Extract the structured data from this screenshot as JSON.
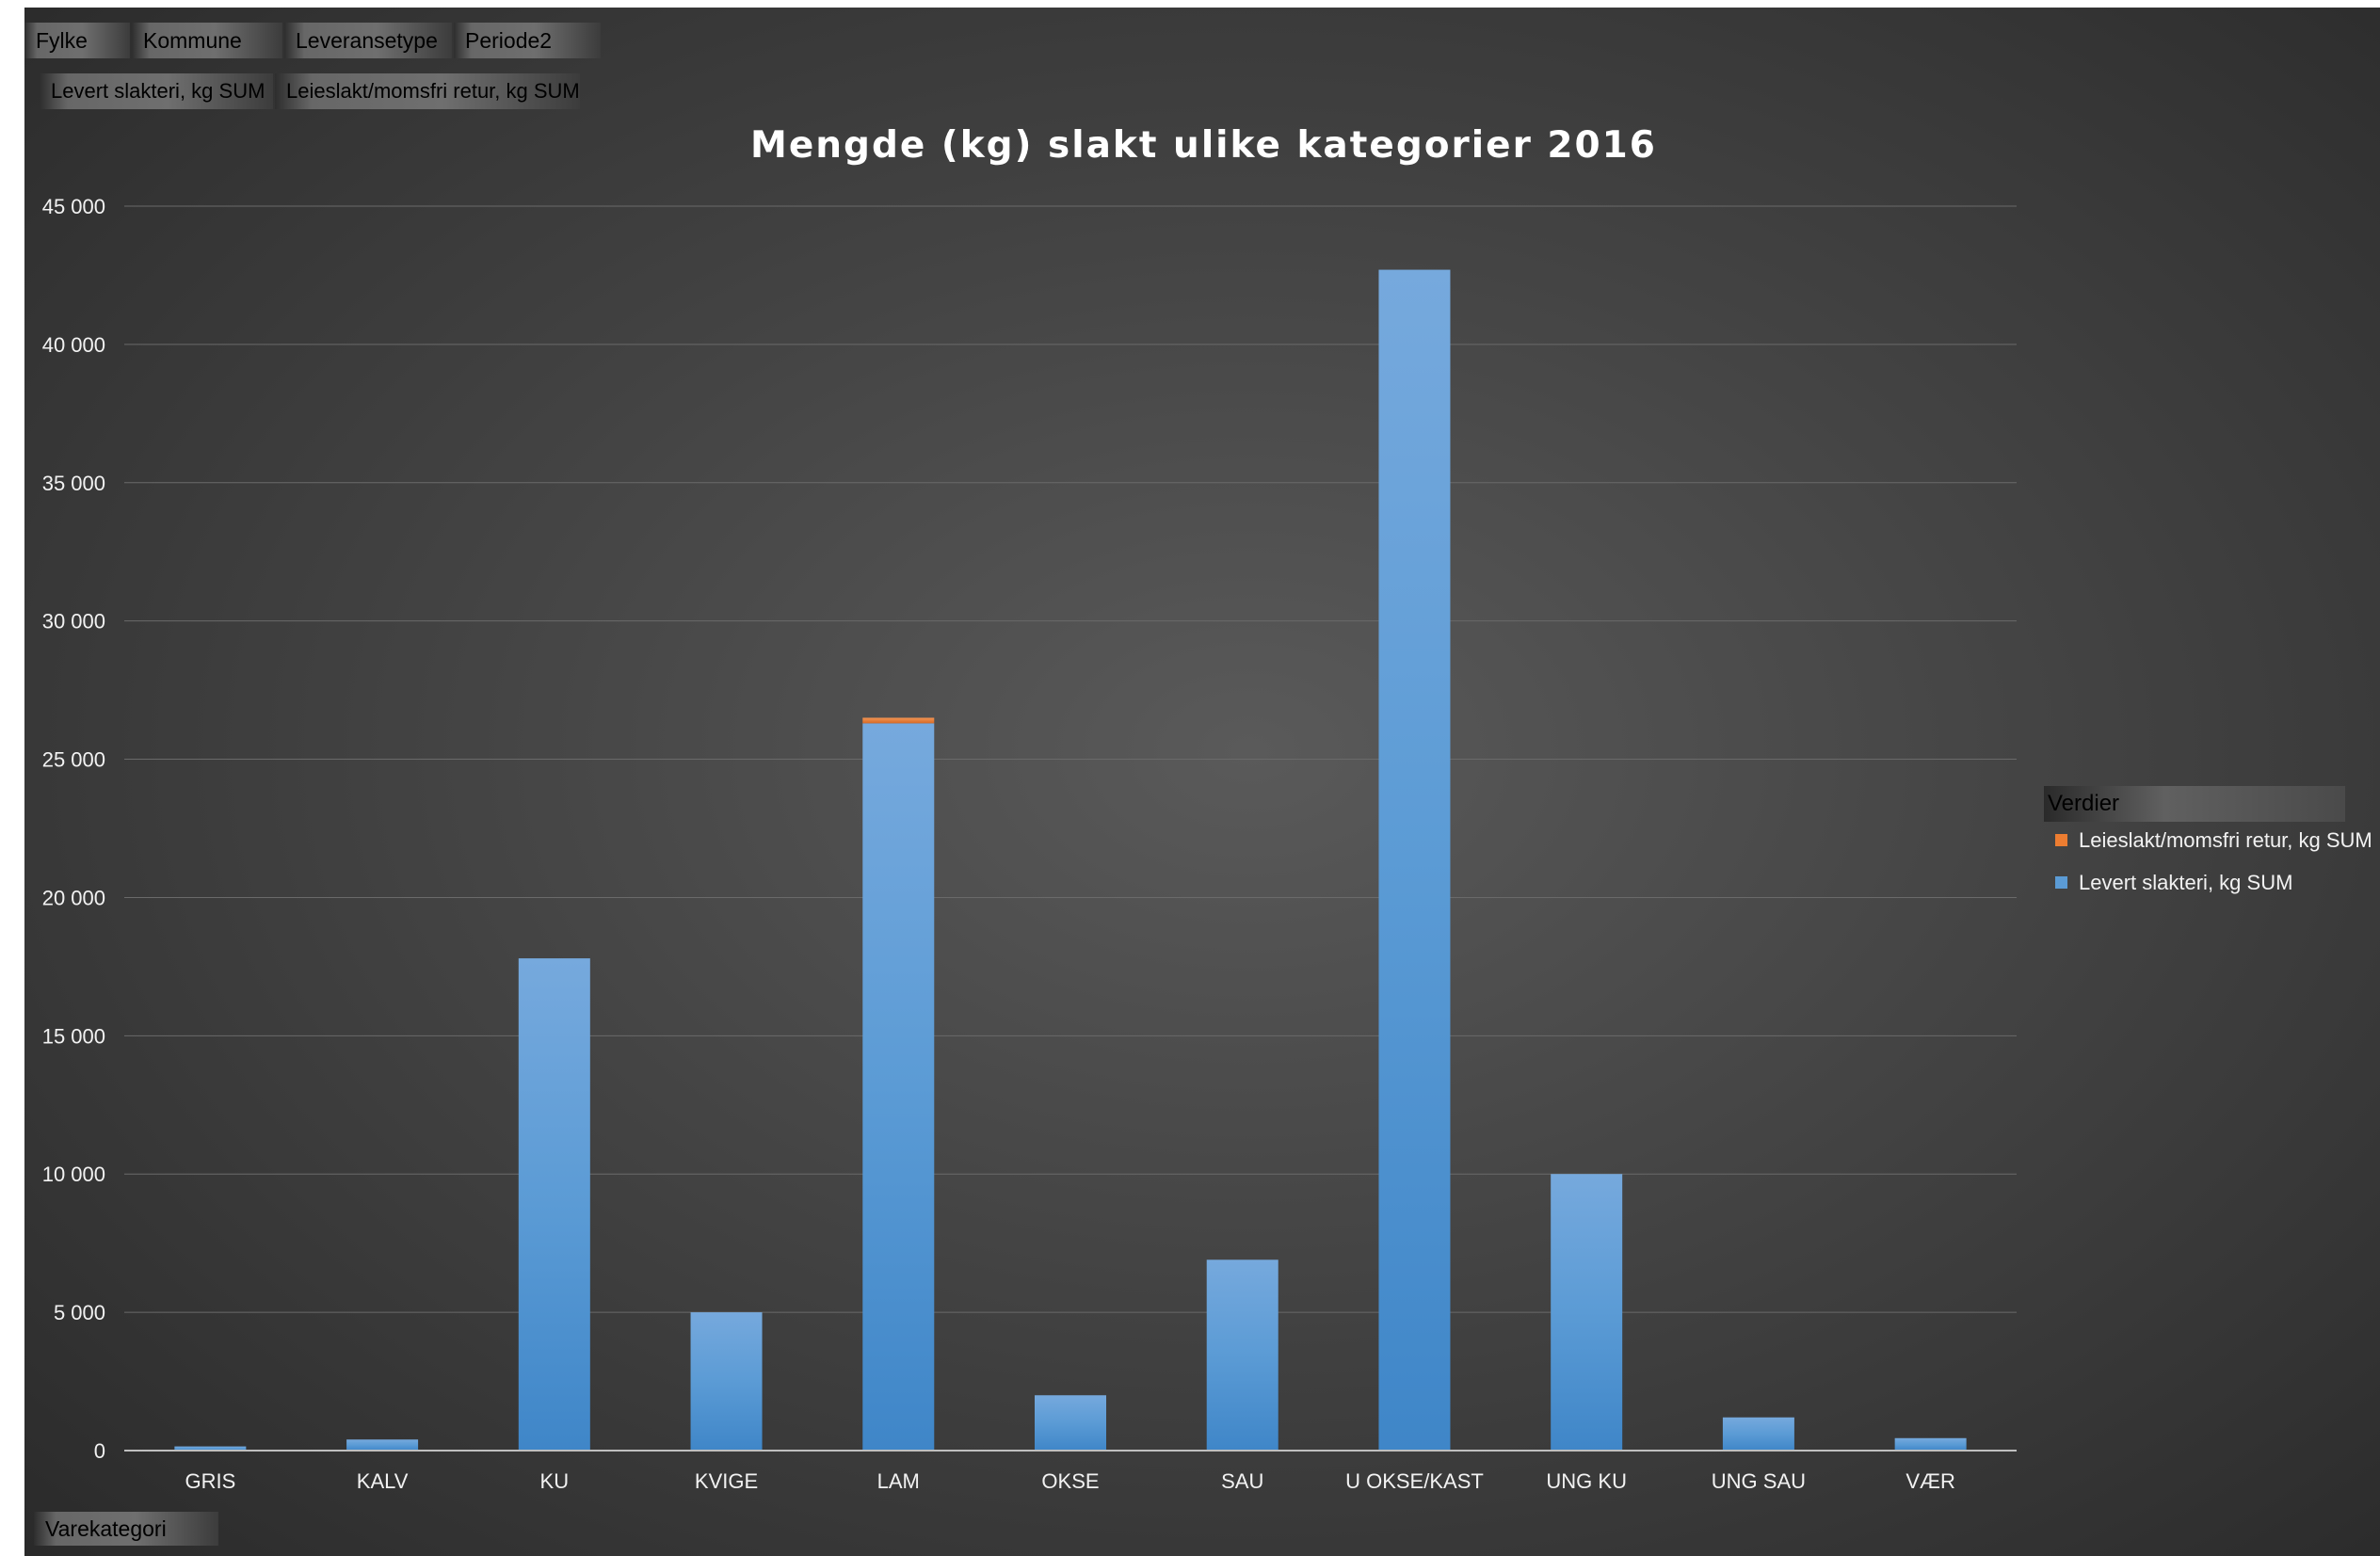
{
  "pivot_filters": [
    "Fylke",
    "Kommune",
    "Leveransetype",
    "Periode2"
  ],
  "value_fields": [
    "Levert slakteri, kg SUM",
    "Leieslakt/momsfri retur, kg SUM"
  ],
  "axis_field": "Varekategori",
  "legend": {
    "title": "Verdier",
    "items": [
      {
        "label": "Leieslakt/momsfri retur, kg SUM",
        "color": "#ED7D31"
      },
      {
        "label": "Levert slakteri, kg SUM",
        "color": "#5B9BD5"
      }
    ]
  },
  "chart_data": {
    "type": "bar",
    "stacked": true,
    "title": "Mengde (kg) slakt ulike kategorier 2016",
    "categories": [
      "GRIS",
      "KALV",
      "KU",
      "KVIGE",
      "LAM",
      "OKSE",
      "SAU",
      "U OKSE/KAST",
      "UNG KU",
      "UNG SAU",
      "VÆR"
    ],
    "series": [
      {
        "name": "Levert slakteri, kg SUM",
        "color": "#5B9BD5",
        "values": [
          150,
          400,
          17800,
          5000,
          26300,
          2000,
          6900,
          42700,
          10000,
          1200,
          450
        ]
      },
      {
        "name": "Leieslakt/momsfri retur, kg SUM",
        "color": "#ED7D31",
        "values": [
          0,
          0,
          0,
          0,
          200,
          0,
          0,
          0,
          0,
          0,
          0
        ]
      }
    ],
    "ylim": [
      0,
      45000
    ],
    "yticks": [
      0,
      5000,
      10000,
      15000,
      20000,
      25000,
      30000,
      35000,
      40000,
      45000
    ],
    "ytick_labels": [
      "0",
      "5 000",
      "10 000",
      "15 000",
      "20 000",
      "25 000",
      "30 000",
      "35 000",
      "40 000",
      "45 000"
    ],
    "grid": true,
    "legend_position": "right"
  }
}
